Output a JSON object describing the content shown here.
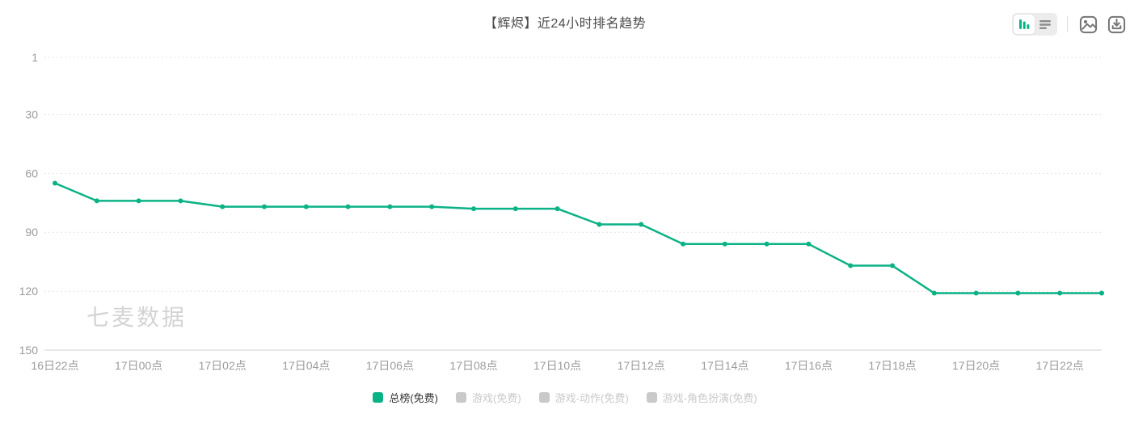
{
  "header": {
    "title": "【辉烬】近24小时排名趋势"
  },
  "toolbar": {
    "chart_view_icon": "bar-chart-icon",
    "table_view_icon": "list-icon",
    "export_image_icon": "image-icon",
    "download_icon": "download-icon"
  },
  "watermark": "七麦数据",
  "colors": {
    "accent": "#0bb285",
    "inactive_legend": "#c9c9c9",
    "axis_label": "#9b9b9b",
    "grid_line": "#e4e4e4",
    "axis_line": "#cfcfcf",
    "title_text": "#4c4c4c"
  },
  "legend": {
    "items": [
      {
        "label": "总榜(免费)",
        "active": true
      },
      {
        "label": "游戏(免费)",
        "active": false
      },
      {
        "label": "游戏-动作(免费)",
        "active": false
      },
      {
        "label": "游戏-角色扮演(免费)",
        "active": false
      }
    ]
  },
  "chart_data": {
    "type": "line",
    "title": "【辉烬】近24小时排名趋势",
    "x": [
      "16日22点",
      "16日23点",
      "17日00点",
      "17日01点",
      "17日02点",
      "17日03点",
      "17日04点",
      "17日05点",
      "17日06点",
      "17日07点",
      "17日08点",
      "17日09点",
      "17日10点",
      "17日11点",
      "17日12点",
      "17日13点",
      "17日14点",
      "17日15点",
      "17日16点",
      "17日17点",
      "17日18点",
      "17日19点",
      "17日20点",
      "17日21点",
      "17日22点",
      "17日23点"
    ],
    "series": [
      {
        "name": "总榜(免费)",
        "values": [
          65,
          74,
          74,
          74,
          77,
          77,
          77,
          77,
          77,
          77,
          78,
          78,
          78,
          86,
          86,
          96,
          96,
          96,
          96,
          107,
          107,
          121,
          121,
          121,
          121,
          121
        ]
      }
    ],
    "visible_xtick_labels": [
      "16日22点",
      "17日00点",
      "17日02点",
      "17日04点",
      "17日06点",
      "17日08点",
      "17日10点",
      "17日12点",
      "17日14点",
      "17日16点",
      "17日18点",
      "17日20点",
      "17日22点"
    ],
    "xtick_interval": 2,
    "yticks": [
      1,
      30,
      60,
      90,
      120,
      150
    ],
    "xlabel": "",
    "ylabel": "",
    "y_axis": {
      "inverted": true,
      "min": 1,
      "max": 150
    },
    "grid": {
      "horizontal": true,
      "style": "dotted"
    },
    "legend_position": "bottom"
  }
}
